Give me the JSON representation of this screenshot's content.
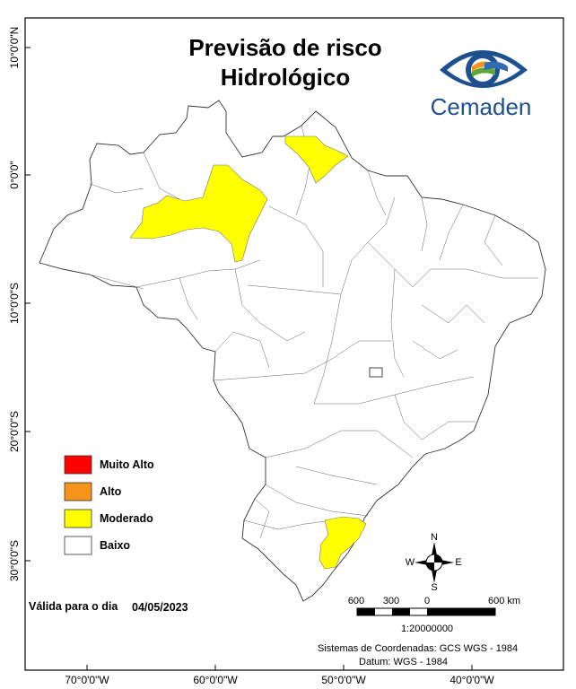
{
  "title_line1": "Previsão de risco",
  "title_line2": "Hidrológico",
  "brand": {
    "name": "Cemaden"
  },
  "lat_labels": [
    "10°0'0\"N",
    "0°0'0\"",
    "10°0'0\"S",
    "20°0'0\"S",
    "30°0'0\"S"
  ],
  "lon_labels": [
    "70°0'0\"W",
    "60°0'0\"W",
    "50°0'0\"W",
    "40°0'0\"W"
  ],
  "legend": [
    {
      "label": "Muito Alto",
      "color": "#ff0000"
    },
    {
      "label": "Alto",
      "color": "#f7941d"
    },
    {
      "label": "Moderado",
      "color": "#ffff00"
    },
    {
      "label": "Baixo",
      "color": "#ffffff"
    }
  ],
  "validity": {
    "prefix": "Válida para o dia",
    "date": "04/05/2023"
  },
  "scalebar": {
    "labels": [
      "600",
      "300",
      "0",
      "600 km"
    ],
    "ratio": "1:20000000"
  },
  "compass": {
    "n": "N",
    "s": "S",
    "e": "E",
    "w": "W"
  },
  "crs": {
    "system": "Sistemas de Coordenadas: GCS WGS - 1984",
    "datum": "Datum: WGS - 1984"
  }
}
